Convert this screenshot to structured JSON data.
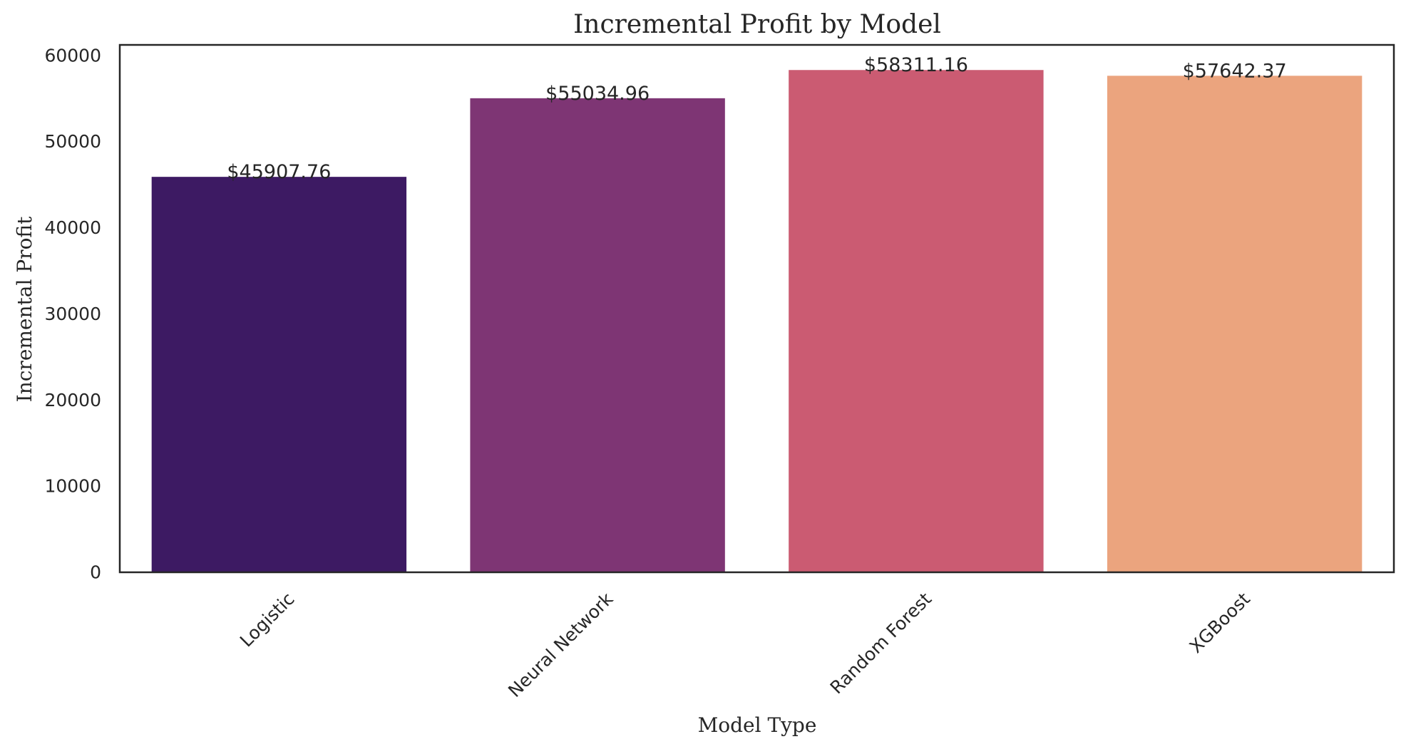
{
  "chart_data": {
    "type": "bar",
    "title": "Incremental Profit by Model",
    "xlabel": "Model Type",
    "ylabel": "Incremental Profit",
    "categories": [
      "Logistic",
      "Neural Network",
      "Random Forest",
      "XGBoost"
    ],
    "values": [
      45907.76,
      55034.96,
      58311.16,
      57642.37
    ],
    "value_labels": [
      "$45907.76",
      "$55034.96",
      "$58311.16",
      "$57642.37"
    ],
    "colors": [
      "#3d1a63",
      "#7e3574",
      "#cb5b72",
      "#eba47e"
    ],
    "yticks": [
      0,
      10000,
      20000,
      30000,
      40000,
      50000,
      60000
    ],
    "ytick_labels": [
      "0",
      "10000",
      "20000",
      "30000",
      "40000",
      "50000",
      "60000"
    ],
    "ylim": [
      0,
      61227.72
    ],
    "grid": false,
    "legend": "none",
    "xtick_rotation_deg": 45
  }
}
